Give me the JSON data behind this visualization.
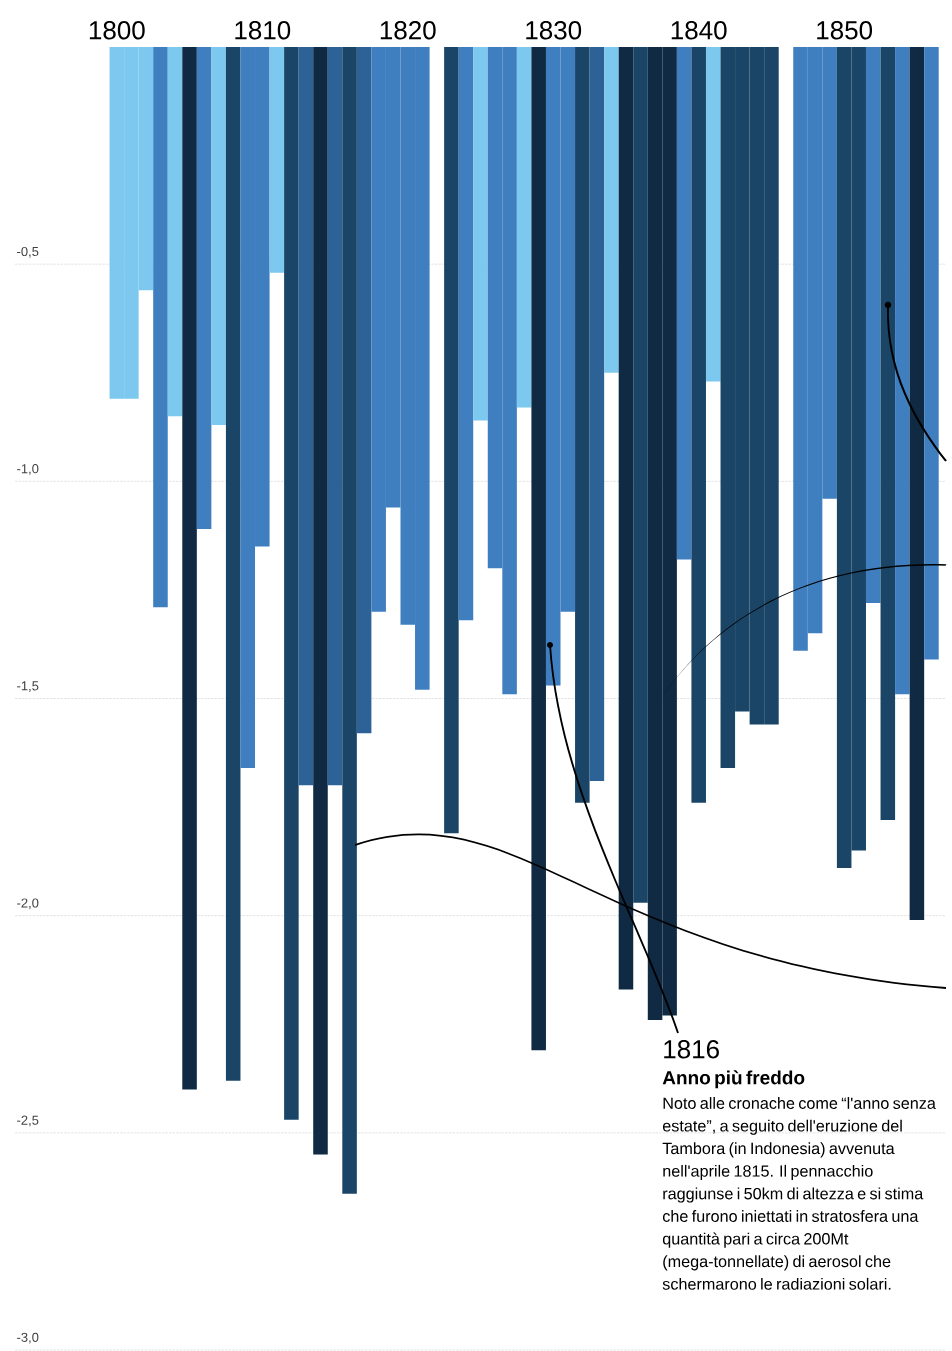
{
  "chart_data": {
    "type": "bar",
    "x": [
      1800,
      1801,
      1802,
      1803,
      1804,
      1805,
      1806,
      1807,
      1808,
      1809,
      1810,
      1811,
      1812,
      1813,
      1814,
      1815,
      1816,
      1817,
      1818,
      1819,
      1820,
      1821,
      1822,
      1823,
      1824,
      1825,
      1826,
      1827,
      1828,
      1829,
      1830,
      1831,
      1832,
      1833,
      1834,
      1835,
      1836,
      1837,
      1838,
      1839,
      1840,
      1841,
      1842,
      1843,
      1844,
      1845,
      1846,
      1847,
      1848,
      1849,
      1850,
      1851,
      1852,
      1853,
      1854,
      1855,
      1856
    ],
    "values": [
      -0.81,
      -0.81,
      -0.56,
      -1.29,
      -0.85,
      -2.4,
      -1.11,
      -0.87,
      -2.38,
      -1.66,
      -1.15,
      -0.52,
      -2.47,
      -1.7,
      -2.55,
      -1.7,
      -2.64,
      -1.58,
      -1.3,
      -1.06,
      -1.33,
      -1.48,
      null,
      -1.81,
      -1.32,
      -0.86,
      -1.2,
      -1.49,
      -0.83,
      -2.31,
      -1.47,
      -1.3,
      -1.74,
      -1.69,
      -0.75,
      -2.17,
      -1.97,
      -2.24,
      -2.23,
      -1.18,
      -1.74,
      -0.77,
      -1.66,
      -1.53,
      -1.56,
      -1.56,
      null,
      -1.39,
      -1.35,
      -1.04,
      -1.89,
      -1.85,
      -1.28,
      -1.78,
      -1.49,
      -2.01,
      -1.41
    ],
    "colors": [
      "#7cc8ee",
      "#7cc8ee",
      "#7cc8ee",
      "#3f7fbf",
      "#7cc8ee",
      "#0f2a42",
      "#3f7fbf",
      "#7cc8ee",
      "#1b4566",
      "#3f7fbf",
      "#3f7fbf",
      "#7cc8ee",
      "#1b4566",
      "#2d6296",
      "#0f2a42",
      "#2d6296",
      "#1b4566",
      "#2d6296",
      "#3f7fbf",
      "#3f7fbf",
      "#3f7fbf",
      "#3f7fbf",
      null,
      "#1b4566",
      "#3f7fbf",
      "#7cc8ee",
      "#3f7fbf",
      "#3f7fbf",
      "#7cc8ee",
      "#0f2a42",
      "#3f7fbf",
      "#3f7fbf",
      "#1b4566",
      "#2d6296",
      "#7cc8ee",
      "#0f2a42",
      "#1b4566",
      "#0f2a42",
      "#0f2a42",
      "#3f7fbf",
      "#1b4566",
      "#7cc8ee",
      "#1b4566",
      "#1b4566",
      "#1b4566",
      "#1b4566",
      null,
      "#3f7fbf",
      "#3f7fbf",
      "#3f7fbf",
      "#1b4566",
      "#1b4566",
      "#3f7fbf",
      "#1b4566",
      "#3f7fbf",
      "#0f2a42",
      "#3f7fbf"
    ],
    "xlim": [
      1793,
      1857
    ],
    "ylim": [
      -3,
      0
    ],
    "xticks": [
      1800,
      1810,
      1820,
      1830,
      1840,
      1850
    ],
    "yticks": [
      {
        "value": -3,
        "label": "-3,0"
      },
      {
        "value": -2.5,
        "label": "-2,5"
      },
      {
        "value": -2,
        "label": "-2,0"
      },
      {
        "value": -1.5,
        "label": "-1,5"
      },
      {
        "value": -1,
        "label": "-1,0"
      },
      {
        "value": -0.5,
        "label": "-0,5"
      }
    ],
    "grid": "y",
    "annotations": [
      "1816",
      "Anno più freddo",
      "Noto alle cronache come “l'anno senza estate”, a seguito dell'eruzione del Tambora (in Indonesia) avvenuta nell'aprile 1815. Il pennacchio raggiunse i 50km di altezza e si stima che furono iniettati in stratosfera una quantità pari a circa 200Mt (mega-tonnellate) di aerosol che schermarono le radiazioni solari."
    ]
  }
}
